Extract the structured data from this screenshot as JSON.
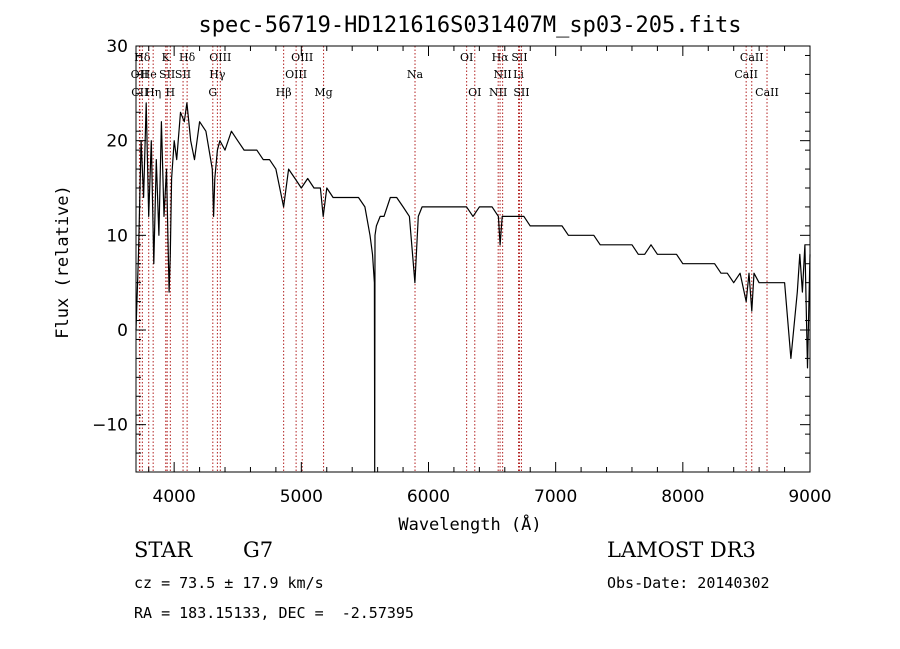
{
  "chart_data": {
    "type": "line",
    "title": "spec-56719-HD121616S031407M_sp03-205.fits",
    "xlabel": "Wavelength (Å)",
    "ylabel": "Flux (relative)",
    "xlim": [
      3700,
      9000
    ],
    "ylim": [
      -15,
      30
    ],
    "xticks": [
      4000,
      5000,
      6000,
      7000,
      8000,
      9000
    ],
    "yticks": [
      -10,
      0,
      10,
      20,
      30
    ],
    "series": [
      {
        "name": "flux",
        "x": [
          3700,
          3720,
          3740,
          3760,
          3780,
          3800,
          3820,
          3840,
          3860,
          3880,
          3900,
          3920,
          3940,
          3960,
          3970,
          3980,
          4000,
          4020,
          4050,
          4080,
          4100,
          4130,
          4160,
          4200,
          4250,
          4300,
          4310,
          4320,
          4340,
          4360,
          4400,
          4450,
          4500,
          4550,
          4600,
          4650,
          4700,
          4750,
          4800,
          4861,
          4900,
          4950,
          5000,
          5050,
          5100,
          5150,
          5172,
          5200,
          5250,
          5300,
          5350,
          5400,
          5450,
          5500,
          5540,
          5560,
          5575,
          5577,
          5579,
          5590,
          5620,
          5650,
          5700,
          5750,
          5800,
          5850,
          5893,
          5920,
          5950,
          6000,
          6050,
          6100,
          6150,
          6200,
          6250,
          6300,
          6350,
          6400,
          6450,
          6500,
          6550,
          6563,
          6580,
          6600,
          6650,
          6700,
          6750,
          6800,
          6850,
          6900,
          6950,
          7000,
          7050,
          7100,
          7150,
          7200,
          7250,
          7300,
          7350,
          7400,
          7450,
          7500,
          7550,
          7600,
          7650,
          7700,
          7750,
          7800,
          7850,
          7900,
          7950,
          8000,
          8050,
          8100,
          8150,
          8200,
          8250,
          8300,
          8350,
          8400,
          8450,
          8498,
          8520,
          8542,
          8560,
          8600,
          8662,
          8700,
          8750,
          8800,
          8850,
          8900,
          8920,
          8940,
          8960,
          8980,
          9000
        ],
        "y": [
          0,
          8,
          20,
          14,
          24,
          12,
          20,
          7,
          18,
          10,
          22,
          12,
          17,
          4,
          8,
          16,
          20,
          18,
          23,
          22,
          24,
          20,
          18,
          22,
          21,
          17,
          12,
          16,
          19,
          20,
          19,
          21,
          20,
          19,
          19,
          19,
          18,
          18,
          17,
          13,
          17,
          16,
          15,
          16,
          15,
          15,
          12,
          15,
          14,
          14,
          14,
          14,
          14,
          13,
          10,
          8,
          5,
          -15,
          10,
          11,
          12,
          12,
          14,
          14,
          13,
          12,
          5,
          12,
          13,
          13,
          13,
          13,
          13,
          13,
          13,
          13,
          12,
          13,
          13,
          13,
          12,
          9,
          12,
          12,
          12,
          12,
          12,
          11,
          11,
          11,
          11,
          11,
          11,
          10,
          10,
          10,
          10,
          10,
          9,
          9,
          9,
          9,
          9,
          9,
          8,
          8,
          9,
          8,
          8,
          8,
          8,
          7,
          7,
          7,
          7,
          7,
          7,
          6,
          6,
          5,
          6,
          3,
          6,
          2,
          6,
          5,
          5,
          5,
          5,
          5,
          -3,
          4,
          8,
          4,
          9,
          -4,
          8
        ]
      }
    ],
    "line_markers": [
      {
        "label": "Hδ",
        "wavelength": 3750,
        "row": 1
      },
      {
        "label": "OII",
        "wavelength": 3727,
        "row": 2
      },
      {
        "label": "CII",
        "wavelength": 3730,
        "row": 3
      },
      {
        "label": "He",
        "wavelength": 3800,
        "row": 2
      },
      {
        "label": "Hη",
        "wavelength": 3835,
        "row": 3
      },
      {
        "label": "K",
        "wavelength": 3934,
        "row": 1
      },
      {
        "label": "SII",
        "wavelength": 3945,
        "row": 2
      },
      {
        "label": "H",
        "wavelength": 3970,
        "row": 3
      },
      {
        "label": "Hδ",
        "wavelength": 4102,
        "row": 1
      },
      {
        "label": "SII",
        "wavelength": 4070,
        "row": 2
      },
      {
        "label": "OIII",
        "wavelength": 4363,
        "row": 1
      },
      {
        "label": "Hγ",
        "wavelength": 4340,
        "row": 2
      },
      {
        "label": "G",
        "wavelength": 4304,
        "row": 3
      },
      {
        "label": "Hβ",
        "wavelength": 4861,
        "row": 3
      },
      {
        "label": "OIII",
        "wavelength": 5007,
        "row": 1
      },
      {
        "label": "OIII",
        "wavelength": 4959,
        "row": 2
      },
      {
        "label": "Mg",
        "wavelength": 5175,
        "row": 3
      },
      {
        "label": "Na",
        "wavelength": 5894,
        "row": 2
      },
      {
        "label": "OI",
        "wavelength": 6300,
        "row": 1
      },
      {
        "label": "OI",
        "wavelength": 6364,
        "row": 3
      },
      {
        "label": "Hα",
        "wavelength": 6563,
        "row": 1
      },
      {
        "label": "NII",
        "wavelength": 6583,
        "row": 2
      },
      {
        "label": "NII",
        "wavelength": 6548,
        "row": 3
      },
      {
        "label": "SII",
        "wavelength": 6716,
        "row": 1
      },
      {
        "label": "Li",
        "wavelength": 6708,
        "row": 2
      },
      {
        "label": "SII",
        "wavelength": 6731,
        "row": 3
      },
      {
        "label": "CaII",
        "wavelength": 8542,
        "row": 1
      },
      {
        "label": "CaII",
        "wavelength": 8498,
        "row": 2
      },
      {
        "label": "CaII",
        "wavelength": 8662,
        "row": 3
      }
    ]
  },
  "colors": {
    "background": "#ffffff",
    "axis": "#000000",
    "marker_line": "#b22222"
  },
  "info": {
    "class_label": "STAR",
    "subclass": "G7",
    "survey": "LAMOST DR3",
    "cz": "cz = 73.5 ± 17.9 km/s",
    "obs_date": "Obs-Date: 20140302",
    "coords": "RA = 183.15133, DEC =  -2.57395"
  }
}
